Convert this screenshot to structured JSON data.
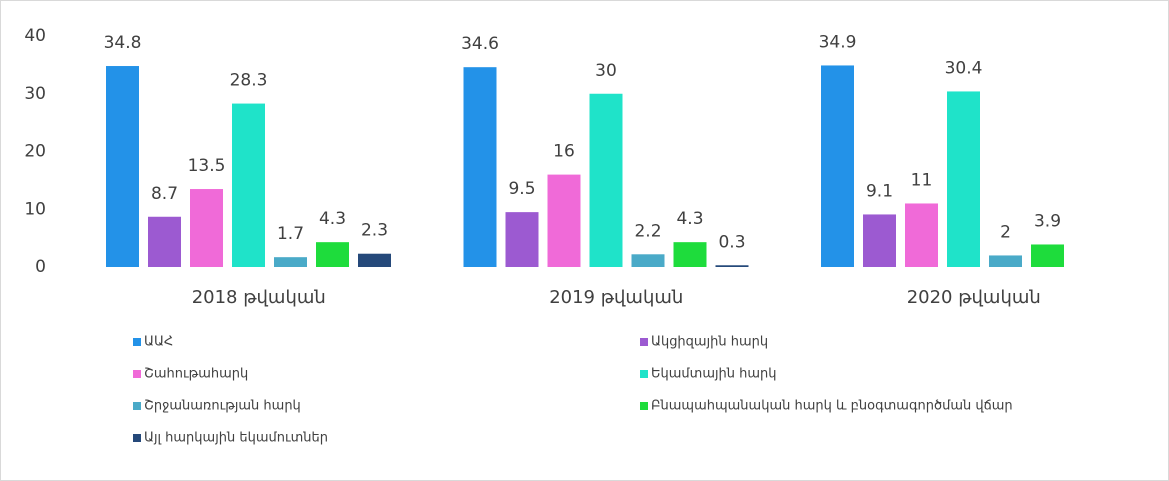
{
  "chart_data": {
    "type": "bar",
    "categories": [
      "2018 թվական",
      "2019 թվական",
      "2020 թվական"
    ],
    "series": [
      {
        "name": "ԱԱՀ",
        "color": "#2392e8",
        "values": [
          34.8,
          34.6,
          34.9
        ]
      },
      {
        "name": "Ակցիզային հարկ",
        "color": "#9c5ad1",
        "values": [
          8.7,
          9.5,
          9.1
        ]
      },
      {
        "name": "Շահութահարկ",
        "color": "#f06ad8",
        "values": [
          13.5,
          16,
          11
        ]
      },
      {
        "name": "Եկամտային հարկ",
        "color": "#1fe3c9",
        "values": [
          28.3,
          30,
          30.4
        ]
      },
      {
        "name": "Շրջանառության հարկ",
        "color": "#4aaac8",
        "values": [
          1.7,
          2.2,
          2
        ]
      },
      {
        "name": "Բնապահպանական հարկ և բնօգտագործման վճար",
        "color": "#1edc3c",
        "values": [
          4.3,
          4.3,
          3.9
        ]
      },
      {
        "name": "Այլ հարկային եկամուտներ",
        "color": "#25497a",
        "values": [
          2.3,
          0.3,
          null
        ]
      }
    ],
    "ylim": [
      0,
      40
    ],
    "yticks": [
      0,
      10,
      20,
      30,
      40
    ],
    "grid": false,
    "legend": "bottom"
  }
}
